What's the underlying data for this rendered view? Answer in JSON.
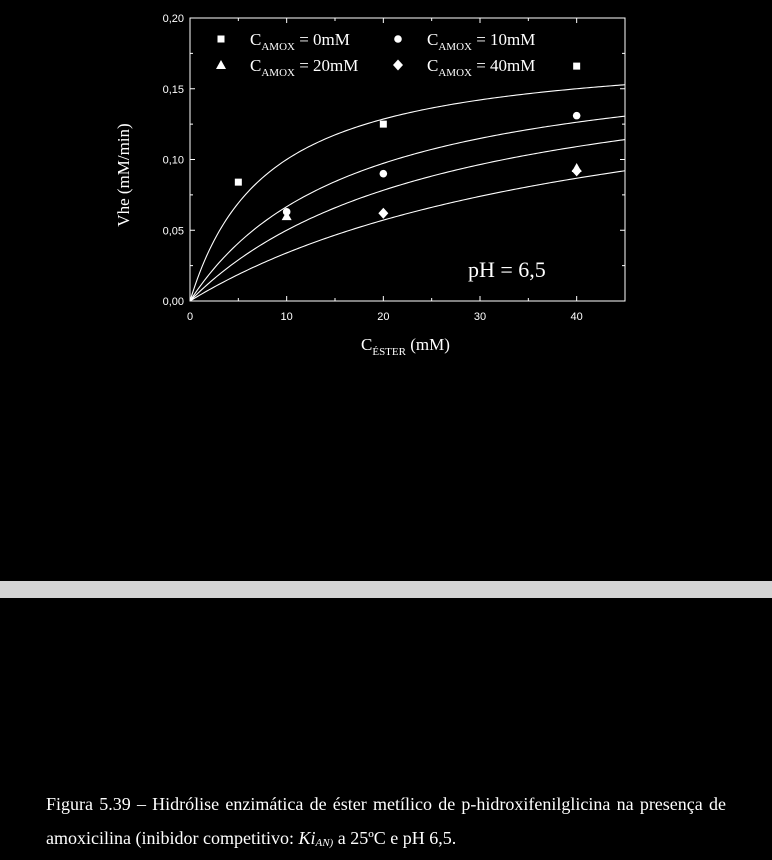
{
  "chart_data": {
    "type": "scatter",
    "xlabel": "C",
    "xlabel_sub": "ÉSTER",
    "xlabel_unit": " (mM)",
    "ylabel": "Vhe (mM/min)",
    "xlim": [
      0,
      45
    ],
    "ylim": [
      0,
      0.2
    ],
    "x_ticks": [
      0,
      10,
      20,
      30,
      40
    ],
    "y_ticks": [
      0.0,
      0.05,
      0.1,
      0.15,
      0.2
    ],
    "y_tick_labels": [
      "0,00",
      "0,05",
      "0,10",
      "0,15",
      "0,20"
    ],
    "x_tick_labels": [
      "0",
      "10",
      "20",
      "30",
      "40"
    ],
    "annotation": "pH = 6,5",
    "legend_position": "top",
    "series": [
      {
        "name": "C",
        "name_sub": "AMOX",
        "name_suffix": " = 0mM",
        "marker": "square",
        "x": [
          5,
          20,
          40
        ],
        "y": [
          0.084,
          0.125,
          0.166
        ],
        "fit": {
          "vmax": 0.18,
          "km": 8
        }
      },
      {
        "name": "C",
        "name_sub": "AMOX",
        "name_suffix": " = 10mM",
        "marker": "circle",
        "x": [
          10,
          20,
          40
        ],
        "y": [
          0.063,
          0.09,
          0.131
        ],
        "fit": {
          "vmax": 0.18,
          "km": 17
        }
      },
      {
        "name": "C",
        "name_sub": "AMOX",
        "name_suffix": " = 20mM",
        "marker": "triangle",
        "x": [
          10,
          40
        ],
        "y": [
          0.06,
          0.094
        ],
        "fit": {
          "vmax": 0.18,
          "km": 26
        }
      },
      {
        "name": "C",
        "name_sub": "AMOX",
        "name_suffix": " = 40mM",
        "marker": "diamond",
        "x": [
          20,
          40
        ],
        "y": [
          0.062,
          0.092
        ],
        "fit": {
          "vmax": 0.18,
          "km": 43
        }
      }
    ]
  },
  "caption": {
    "prefix": "Figura 5.39 – Hidrólise enzimática de éster metílico de p-hidroxifenilglicina na presença de amoxicilina (inibidor competitivo: ",
    "ki": "Ki",
    "ki_sub": "AN)",
    "suffix": " a 25ºC e pH 6,5."
  },
  "colors": {
    "background": "#000000",
    "foreground": "#ffffff",
    "divider": "#d4d4d4"
  }
}
